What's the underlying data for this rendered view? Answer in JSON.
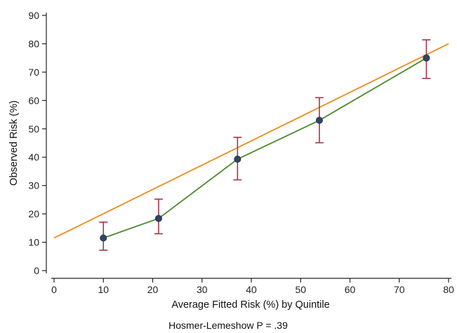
{
  "chart_data": {
    "type": "line",
    "xlabel": "Average Fitted Risk (%) by Quintile",
    "ylabel": "Observed Risk (%)",
    "xlim": [
      0,
      80
    ],
    "ylim": [
      0,
      90
    ],
    "xticks": [
      "0",
      "10",
      "20",
      "30",
      "40",
      "50",
      "60",
      "70",
      "80"
    ],
    "yticks": [
      "0",
      "10",
      "20",
      "30",
      "40",
      "50",
      "60",
      "70",
      "80",
      "90"
    ],
    "grid": false,
    "note": "Hosmer-Lemeshow P = .39",
    "series": [
      {
        "role": "observed",
        "color": "#4e8a2b",
        "marker_color": "#2b4763",
        "points": [
          {
            "x": 10.0,
            "y": 11.5,
            "lo": 7.2,
            "hi": 17.1
          },
          {
            "x": 21.2,
            "y": 18.4,
            "lo": 13.0,
            "hi": 25.2
          },
          {
            "x": 37.2,
            "y": 39.3,
            "lo": 32.0,
            "hi": 47.0
          },
          {
            "x": 53.8,
            "y": 53.0,
            "lo": 45.1,
            "hi": 61.0
          },
          {
            "x": 75.5,
            "y": 75.0,
            "lo": 67.8,
            "hi": 81.4
          }
        ]
      },
      {
        "role": "reference",
        "color": "#ee8a1a",
        "points": [
          {
            "x": 0,
            "y": 11.5
          },
          {
            "x": 80,
            "y": 80
          }
        ]
      }
    ],
    "errorbar_color": "#a6354a"
  }
}
